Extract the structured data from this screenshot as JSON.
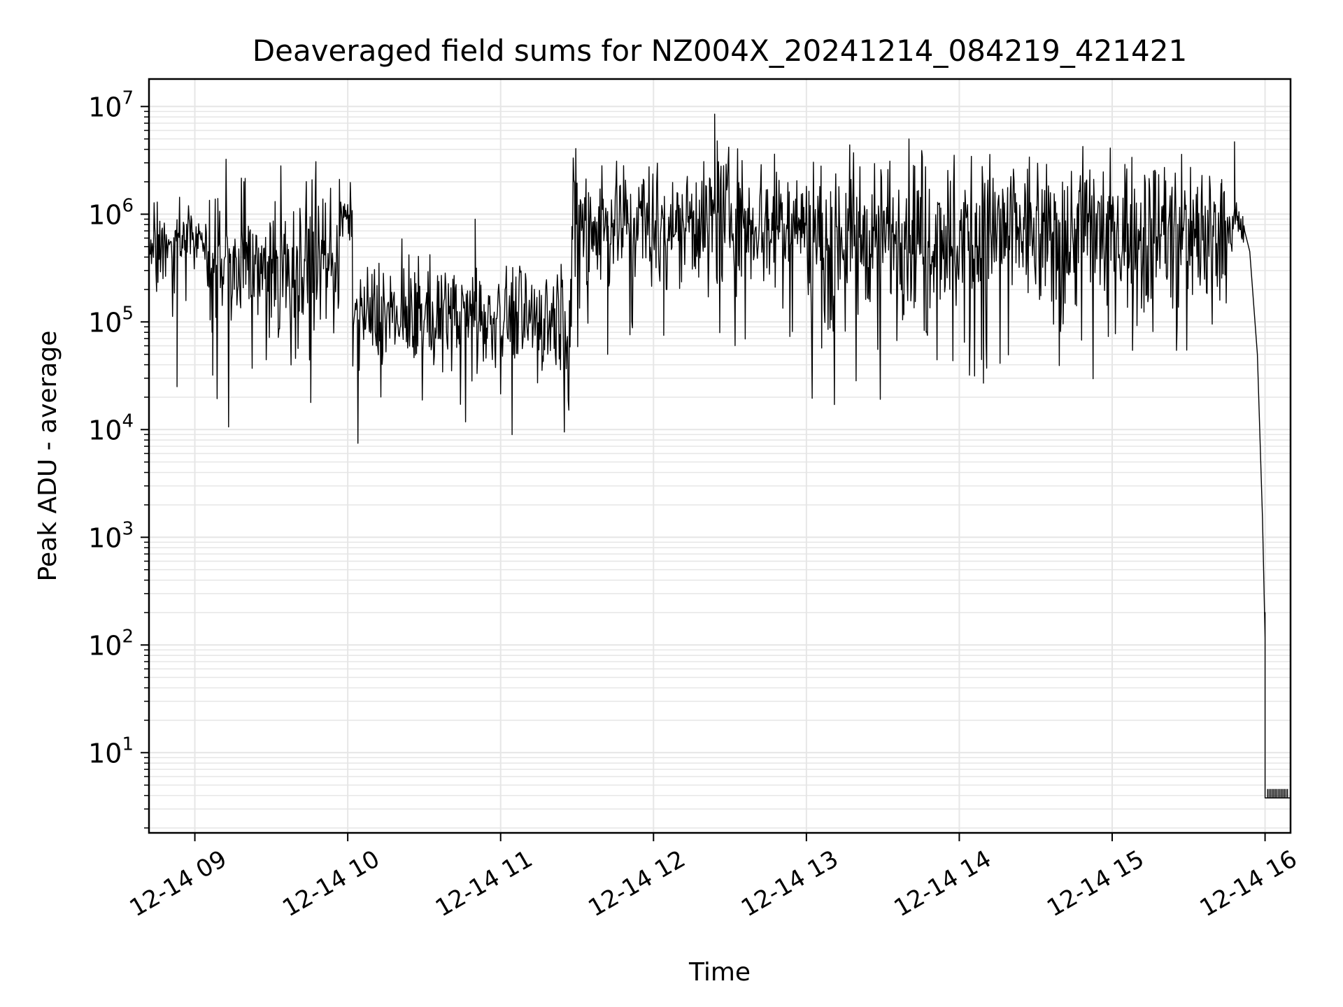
{
  "chart_data": {
    "type": "line",
    "title": "Deaveraged field sums for NZ004X_20241214_084219_421421",
    "xlabel": "Time",
    "ylabel": "Peak ADU - average",
    "yscale": "log",
    "grid": true,
    "line_color": "#000000",
    "grid_color": "#e6e6e6",
    "xlim": [
      "2024-12-14 08:42",
      "2024-12-14 16:10"
    ],
    "ylim": [
      1.8,
      18000000
    ],
    "xticks": [
      {
        "value": "2024-12-14 09:00",
        "label": "12-14 09"
      },
      {
        "value": "2024-12-14 10:00",
        "label": "12-14 10"
      },
      {
        "value": "2024-12-14 11:00",
        "label": "12-14 11"
      },
      {
        "value": "2024-12-14 12:00",
        "label": "12-14 12"
      },
      {
        "value": "2024-12-14 13:00",
        "label": "12-14 13"
      },
      {
        "value": "2024-12-14 14:00",
        "label": "12-14 14"
      },
      {
        "value": "2024-12-14 15:00",
        "label": "12-14 15"
      },
      {
        "value": "2024-12-14 16:00",
        "label": "12-14 16"
      }
    ],
    "yticks": [
      {
        "value": 10,
        "base": "10",
        "exp": "1"
      },
      {
        "value": 100,
        "base": "10",
        "exp": "2"
      },
      {
        "value": 1000,
        "base": "10",
        "exp": "3"
      },
      {
        "value": 10000,
        "base": "10",
        "exp": "4"
      },
      {
        "value": 100000,
        "base": "10",
        "exp": "5"
      },
      {
        "value": 1000000,
        "base": "10",
        "exp": "6"
      },
      {
        "value": 10000000,
        "base": "10",
        "exp": "7"
      }
    ],
    "segments": [
      {
        "start": "2024-12-14 08:42",
        "end": "2024-12-14 09:05",
        "center": 600000,
        "spread": 0.5
      },
      {
        "start": "2024-12-14 09:05",
        "end": "2024-12-14 09:57",
        "center": 400000,
        "spread": 1.0
      },
      {
        "start": "2024-12-14 09:57",
        "end": "2024-12-14 10:02",
        "center": 900000,
        "spread": 0.4
      },
      {
        "start": "2024-12-14 10:02",
        "end": "2024-12-14 11:28",
        "center": 120000,
        "spread": 0.75
      },
      {
        "start": "2024-12-14 11:28",
        "end": "2024-12-14 13:00",
        "center": 900000,
        "spread": 0.9
      },
      {
        "start": "2024-12-14 13:00",
        "end": "2024-12-14 15:45",
        "center": 700000,
        "spread": 1.1
      },
      {
        "start": "2024-12-14 15:45",
        "end": "2024-12-14 15:52",
        "center": 800000,
        "spread": 0.4
      }
    ],
    "points": [
      {
        "x": "2024-12-14 08:53",
        "y": 25000
      },
      {
        "x": "2024-12-14 09:07",
        "y": 32000
      },
      {
        "x": "2024-12-14 09:09",
        "y": 1400000
      },
      {
        "x": "2024-12-14 10:50",
        "y": 900000
      },
      {
        "x": "2024-12-14 11:42",
        "y": 50000
      },
      {
        "x": "2024-12-14 12:25",
        "y": 4800000
      },
      {
        "x": "2024-12-14 12:24",
        "y": 8500000
      },
      {
        "x": "2024-12-14 12:04",
        "y": 75000
      },
      {
        "x": "2024-12-14 14:04",
        "y": 32000
      },
      {
        "x": "2024-12-14 15:48",
        "y": 4700000
      },
      {
        "x": "2024-12-14 15:43",
        "y": 2100000
      },
      {
        "x": "2024-12-14 15:52",
        "y": 700000
      },
      {
        "x": "2024-12-14 15:54",
        "y": 450000
      },
      {
        "x": "2024-12-14 15:57",
        "y": 50000
      },
      {
        "x": "2024-12-14 15:59",
        "y": 1500
      },
      {
        "x": "2024-12-14 16:00",
        "y": 115
      },
      {
        "x": "2024-12-14 16:00",
        "y": 200
      },
      {
        "x": "2024-12-14 16:00",
        "y": 3.8
      },
      {
        "x": "2024-12-14 16:10",
        "y": 3.8
      }
    ]
  }
}
